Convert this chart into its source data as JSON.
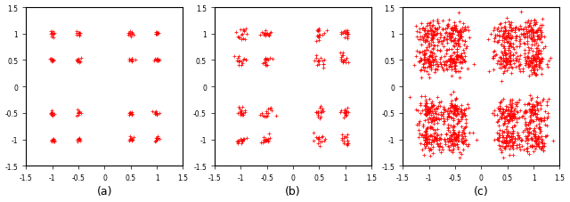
{
  "title_a": "(a)",
  "title_b": "(b)",
  "title_c": "(c)",
  "xlim": [
    -1.5,
    1.5
  ],
  "ylim": [
    -1.5,
    1.5
  ],
  "xticks": [
    -1.5,
    -1.0,
    -0.5,
    0.0,
    0.5,
    1.0,
    1.5
  ],
  "yticks": [
    -1.5,
    -1.0,
    -0.5,
    0.0,
    0.5,
    1.0,
    1.5
  ],
  "xticklabels": [
    "-1.5",
    "-1",
    "-0.5",
    "0",
    "0.5",
    "1",
    "1.5"
  ],
  "yticklabels": [
    "-1.5",
    "-1",
    "-0.5",
    "0",
    "0.5",
    "1",
    "1.5"
  ],
  "point_color": "#FF0000",
  "background": "#FFFFFF",
  "noise_a": 0.025,
  "noise_b": 0.055,
  "noise_c": 0.13,
  "n_points_a": 10,
  "n_points_b": 15,
  "n_points_c": 100,
  "constellation_16qam": [
    [
      -1.0,
      -1.0
    ],
    [
      -1.0,
      -0.5
    ],
    [
      -1.0,
      0.5
    ],
    [
      -1.0,
      1.0
    ],
    [
      -0.5,
      -1.0
    ],
    [
      -0.5,
      -0.5
    ],
    [
      -0.5,
      0.5
    ],
    [
      -0.5,
      1.0
    ],
    [
      0.5,
      -1.0
    ],
    [
      0.5,
      -0.5
    ],
    [
      0.5,
      0.5
    ],
    [
      0.5,
      1.0
    ],
    [
      1.0,
      -1.0
    ],
    [
      1.0,
      -0.5
    ],
    [
      1.0,
      0.5
    ],
    [
      1.0,
      1.0
    ]
  ]
}
